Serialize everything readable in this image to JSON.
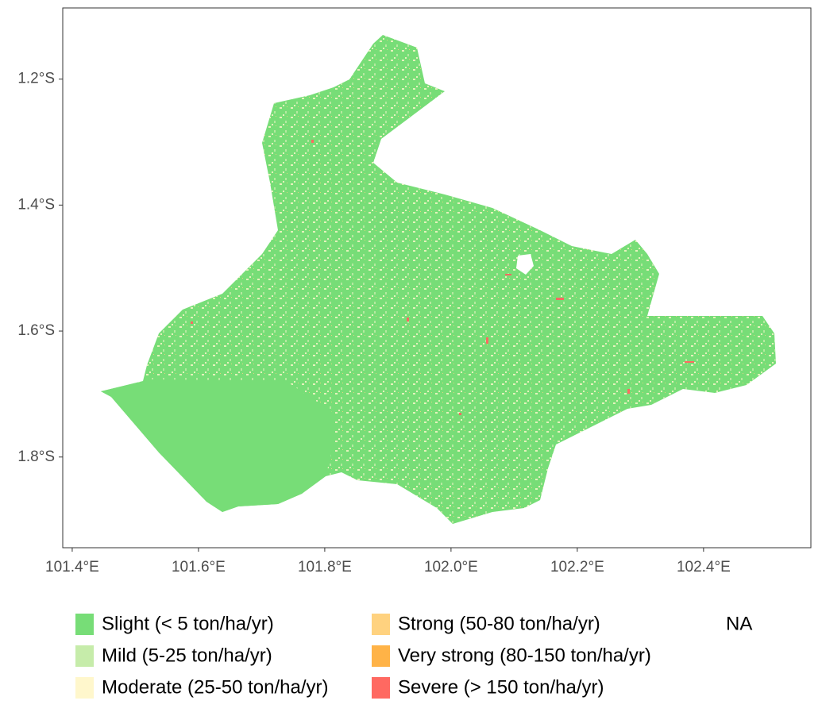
{
  "chart_data": {
    "type": "map",
    "xlim": [
      101.385,
      102.57
    ],
    "ylim": [
      -1.944,
      -1.087
    ],
    "xticks": [
      {
        "value": 101.4,
        "label": "101.4°E"
      },
      {
        "value": 101.6,
        "label": "101.6°E"
      },
      {
        "value": 101.8,
        "label": "101.8°E"
      },
      {
        "value": 102.0,
        "label": "102.0°E"
      },
      {
        "value": 102.2,
        "label": "102.2°E"
      },
      {
        "value": 102.4,
        "label": "102.4°E"
      }
    ],
    "yticks": [
      {
        "value": -1.2,
        "label": "1.2°S"
      },
      {
        "value": -1.4,
        "label": "1.4°S"
      },
      {
        "value": -1.6,
        "label": "1.6°S"
      },
      {
        "value": -1.8,
        "label": "1.8°S"
      }
    ],
    "legend": [
      {
        "name": "Slight (< 5 ton/ha/yr)",
        "color": "#77dd77"
      },
      {
        "name": "Mild (5-25 ton/ha/yr)",
        "color": "#c6ecaa"
      },
      {
        "name": "Moderate (25-50 ton/ha/yr)",
        "color": "#fff7cc"
      },
      {
        "name": "Strong (50-80 ton/ha/yr)",
        "color": "#ffd27f"
      },
      {
        "name": "Very strong (80-150 ton/ha/yr)",
        "color": "#ffb347"
      },
      {
        "name": "Severe (> 150 ton/ha/yr)",
        "color": "#ff6961"
      }
    ],
    "na_label": "NA"
  }
}
